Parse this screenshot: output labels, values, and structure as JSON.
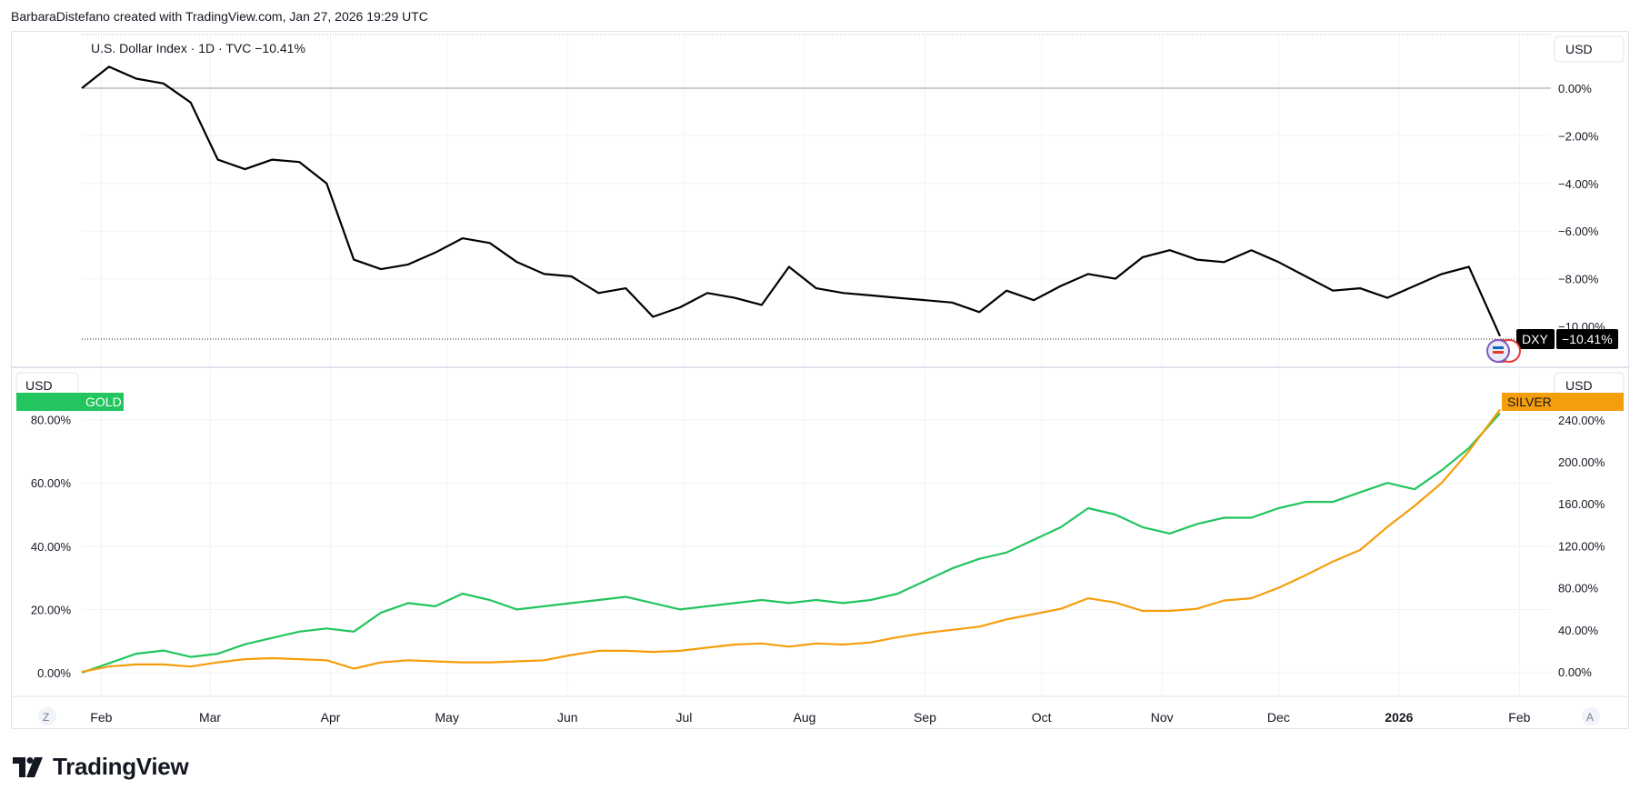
{
  "header": {
    "attribution": "BarbaraDistefano created with TradingView.com, Jan 27, 2026 19:29 UTC"
  },
  "brand": {
    "name": "TradingView",
    "color": "#131722"
  },
  "colors": {
    "dxy": "#000000",
    "gold": "#22c55e",
    "silver": "#f59e0b",
    "grid": "#f0f3fa",
    "axis_text": "#131722"
  },
  "top_pane": {
    "legend": "U.S. Dollar Index · 1D · TVC  −10.41%",
    "currency_label": "USD",
    "y_ticks": [
      "0.00%",
      "−2.00%",
      "−4.00%",
      "−6.00%",
      "−8.00%",
      "−10.00%"
    ],
    "badge_symbol": "DXY",
    "badge_value": "−10.41%"
  },
  "bottom_pane": {
    "left_currency": "USD",
    "right_currency": "USD",
    "left_ticks": [
      "80.00%",
      "60.00%",
      "40.00%",
      "20.00%",
      "0.00%"
    ],
    "right_ticks": [
      "240.00%",
      "200.00%",
      "160.00%",
      "120.00%",
      "80.00%",
      "40.00%",
      "0.00%"
    ],
    "gold_badge": "GOLD",
    "silver_badge": "SILVER"
  },
  "x_axis": {
    "labels": [
      "Feb",
      "Mar",
      "Apr",
      "May",
      "Jun",
      "Jul",
      "Aug",
      "Sep",
      "Oct",
      "Nov",
      "Dec",
      "2026",
      "Feb"
    ],
    "left_button": "Z",
    "right_button": "A"
  },
  "chart_data": [
    {
      "type": "line",
      "name": "U.S. Dollar Index",
      "y_unit": "%",
      "y_range": [
        -10.41,
        1.0
      ],
      "x": [
        "2025-01-27",
        "2025-02-03",
        "2025-02-10",
        "2025-02-17",
        "2025-02-24",
        "2025-03-03",
        "2025-03-10",
        "2025-03-17",
        "2025-03-24",
        "2025-03-31",
        "2025-04-07",
        "2025-04-14",
        "2025-04-21",
        "2025-04-28",
        "2025-05-05",
        "2025-05-12",
        "2025-05-19",
        "2025-05-26",
        "2025-06-02",
        "2025-06-09",
        "2025-06-16",
        "2025-06-23",
        "2025-06-30",
        "2025-07-07",
        "2025-07-14",
        "2025-07-21",
        "2025-07-28",
        "2025-08-04",
        "2025-08-11",
        "2025-08-18",
        "2025-08-25",
        "2025-09-01",
        "2025-09-08",
        "2025-09-15",
        "2025-09-22",
        "2025-09-29",
        "2025-10-06",
        "2025-10-13",
        "2025-10-20",
        "2025-10-27",
        "2025-11-03",
        "2025-11-10",
        "2025-11-17",
        "2025-11-24",
        "2025-12-01",
        "2025-12-08",
        "2025-12-15",
        "2025-12-22",
        "2025-12-29",
        "2026-01-05",
        "2026-01-12",
        "2026-01-19",
        "2026-01-27"
      ],
      "y": [
        0.0,
        0.9,
        0.4,
        0.2,
        -0.6,
        -3.0,
        -3.4,
        -3.0,
        -3.1,
        -4.0,
        -7.2,
        -7.6,
        -7.4,
        -6.9,
        -6.3,
        -6.5,
        -7.3,
        -7.8,
        -7.9,
        -8.6,
        -8.4,
        -9.6,
        -9.2,
        -8.6,
        -8.8,
        -9.1,
        -7.5,
        -8.4,
        -8.6,
        -8.7,
        -8.8,
        -8.9,
        -9.0,
        -9.4,
        -8.5,
        -8.9,
        -8.3,
        -7.8,
        -8.0,
        -7.1,
        -6.8,
        -7.2,
        -7.3,
        -6.8,
        -7.3,
        -7.9,
        -8.5,
        -8.4,
        -8.8,
        -8.3,
        -7.8,
        -7.5,
        -10.41
      ]
    },
    {
      "type": "line",
      "name": "GOLD",
      "y_unit": "%",
      "y_range": [
        -5,
        87
      ],
      "x": [
        "2025-01-27",
        "2025-02-03",
        "2025-02-10",
        "2025-02-17",
        "2025-02-24",
        "2025-03-03",
        "2025-03-10",
        "2025-03-17",
        "2025-03-24",
        "2025-03-31",
        "2025-04-07",
        "2025-04-14",
        "2025-04-21",
        "2025-04-28",
        "2025-05-05",
        "2025-05-12",
        "2025-05-19",
        "2025-05-26",
        "2025-06-02",
        "2025-06-09",
        "2025-06-16",
        "2025-06-23",
        "2025-06-30",
        "2025-07-07",
        "2025-07-14",
        "2025-07-21",
        "2025-07-28",
        "2025-08-04",
        "2025-08-11",
        "2025-08-18",
        "2025-08-25",
        "2025-09-01",
        "2025-09-08",
        "2025-09-15",
        "2025-09-22",
        "2025-09-29",
        "2025-10-06",
        "2025-10-13",
        "2025-10-20",
        "2025-10-27",
        "2025-11-03",
        "2025-11-10",
        "2025-11-17",
        "2025-11-24",
        "2025-12-01",
        "2025-12-08",
        "2025-12-15",
        "2025-12-22",
        "2025-12-29",
        "2026-01-05",
        "2026-01-12",
        "2026-01-19",
        "2026-01-27"
      ],
      "y": [
        0,
        3,
        6,
        7,
        5,
        6,
        9,
        11,
        13,
        14,
        13,
        19,
        22,
        21,
        25,
        23,
        20,
        21,
        22,
        23,
        24,
        22,
        20,
        21,
        22,
        23,
        22,
        23,
        22,
        23,
        25,
        29,
        33,
        36,
        38,
        42,
        46,
        52,
        50,
        46,
        44,
        47,
        49,
        49,
        52,
        54,
        54,
        57,
        60,
        58,
        64,
        71,
        82
      ]
    },
    {
      "type": "line",
      "name": "SILVER",
      "y_unit": "%",
      "y_range": [
        -10,
        250
      ],
      "x": [
        "2025-01-27",
        "2025-02-03",
        "2025-02-10",
        "2025-02-17",
        "2025-02-24",
        "2025-03-03",
        "2025-03-10",
        "2025-03-17",
        "2025-03-24",
        "2025-03-31",
        "2025-04-07",
        "2025-04-14",
        "2025-04-21",
        "2025-04-28",
        "2025-05-05",
        "2025-05-12",
        "2025-05-19",
        "2025-05-26",
        "2025-06-02",
        "2025-06-09",
        "2025-06-16",
        "2025-06-23",
        "2025-06-30",
        "2025-07-07",
        "2025-07-14",
        "2025-07-21",
        "2025-07-28",
        "2025-08-04",
        "2025-08-11",
        "2025-08-18",
        "2025-08-25",
        "2025-09-01",
        "2025-09-08",
        "2025-09-15",
        "2025-09-22",
        "2025-09-29",
        "2025-10-06",
        "2025-10-13",
        "2025-10-20",
        "2025-10-27",
        "2025-11-03",
        "2025-11-10",
        "2025-11-17",
        "2025-11-24",
        "2025-12-01",
        "2025-12-08",
        "2025-12-15",
        "2025-12-22",
        "2025-12-29",
        "2026-01-05",
        "2026-01-12",
        "2026-01-19",
        "2026-01-27"
      ],
      "y": [
        0,
        5,
        7,
        7,
        5,
        9,
        12,
        13,
        12,
        11,
        3,
        9,
        11,
        10,
        9,
        9,
        10,
        11,
        16,
        20,
        20,
        19,
        20,
        23,
        26,
        27,
        24,
        27,
        26,
        28,
        33,
        37,
        40,
        43,
        50,
        55,
        60,
        70,
        66,
        58,
        58,
        60,
        68,
        70,
        80,
        92,
        105,
        116,
        138,
        158,
        180,
        210,
        250
      ]
    }
  ]
}
